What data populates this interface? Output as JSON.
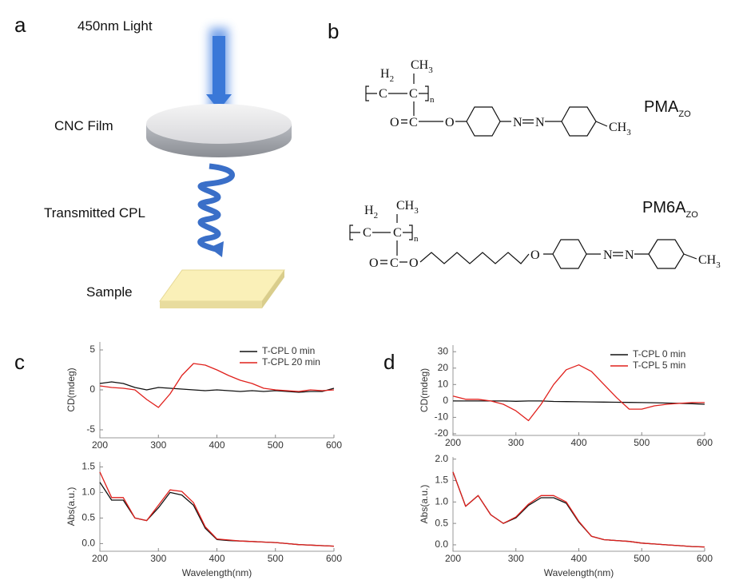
{
  "diagram": {
    "label": "a",
    "light": "450nm Light",
    "film": "CNC Film",
    "cpl": "Transmitted CPL",
    "sample": "Sample"
  },
  "structures": {
    "label": "b",
    "items": [
      {
        "name": "PMA",
        "subscript": "ZO",
        "atoms": [
          "H",
          "2",
          "CH",
          "3",
          "C",
          "C",
          "n",
          "O",
          "C",
          "O",
          "N",
          "N",
          "CH",
          "3"
        ]
      },
      {
        "name": "PM6A",
        "subscript": "ZO",
        "atoms": [
          "H",
          "2",
          "CH",
          "3",
          "C",
          "C",
          "n",
          "O",
          "C",
          "O",
          "O",
          "N",
          "N",
          "CH",
          "3"
        ]
      }
    ]
  },
  "panel_labels": [
    "c",
    "d"
  ],
  "chart_data": [
    {
      "type": "line",
      "ylabel": "CD(mdeg)",
      "xlim": [
        200,
        600
      ],
      "xticks": [
        200,
        300,
        400,
        500,
        600
      ],
      "ylim": [
        -6,
        6
      ],
      "yticks": [
        -5,
        0,
        5
      ],
      "legend": "upper right",
      "x": [
        200,
        220,
        240,
        260,
        280,
        300,
        320,
        340,
        360,
        380,
        400,
        420,
        440,
        460,
        480,
        500,
        520,
        540,
        560,
        580,
        600
      ],
      "series": [
        {
          "name": "T-CPL 0 min",
          "color": "#111111",
          "values": [
            0.8,
            1.0,
            0.8,
            0.3,
            0.0,
            0.3,
            0.2,
            0.1,
            0.0,
            -0.1,
            0.0,
            -0.1,
            -0.2,
            -0.1,
            -0.2,
            -0.1,
            -0.2,
            -0.3,
            -0.2,
            -0.2,
            0.2
          ]
        },
        {
          "name": "T-CPL 20 min",
          "color": "#e0201c",
          "values": [
            0.5,
            0.3,
            0.2,
            0.0,
            -1.2,
            -2.2,
            -0.5,
            1.8,
            3.3,
            3.1,
            2.5,
            1.8,
            1.2,
            0.8,
            0.2,
            0.0,
            -0.1,
            -0.2,
            0.0,
            -0.1,
            0.0
          ]
        }
      ]
    },
    {
      "type": "line",
      "ylabel": "Abs(a.u.)",
      "xlabel": "Wavelength(nm)",
      "xlim": [
        200,
        600
      ],
      "xticks": [
        200,
        300,
        400,
        500,
        600
      ],
      "ylim": [
        -0.15,
        1.6
      ],
      "yticks": [
        {
          "value": 0,
          "label": "0.0"
        },
        0.5,
        {
          "value": 1,
          "label": "1.0"
        },
        1.5
      ],
      "x": [
        200,
        220,
        240,
        260,
        280,
        300,
        320,
        340,
        360,
        380,
        400,
        420,
        440,
        460,
        480,
        500,
        520,
        540,
        560,
        580,
        600
      ],
      "series": [
        {
          "name": "T-CPL 0 min",
          "color": "#111111",
          "values": [
            1.2,
            0.85,
            0.85,
            0.5,
            0.45,
            0.7,
            1.0,
            0.95,
            0.75,
            0.3,
            0.08,
            0.06,
            0.05,
            0.04,
            0.03,
            0.02,
            0.0,
            -0.02,
            -0.03,
            -0.04,
            -0.05
          ]
        },
        {
          "name": "T-CPL 20 min",
          "color": "#e0201c",
          "values": [
            1.4,
            0.9,
            0.9,
            0.5,
            0.45,
            0.75,
            1.05,
            1.02,
            0.8,
            0.33,
            0.09,
            0.07,
            0.05,
            0.04,
            0.03,
            0.02,
            0.0,
            -0.02,
            -0.03,
            -0.04,
            -0.05
          ]
        }
      ]
    },
    {
      "type": "line",
      "ylabel": "CD(mdeg)",
      "xlim": [
        200,
        600
      ],
      "xticks": [
        200,
        300,
        400,
        500,
        600
      ],
      "ylim": [
        -21,
        34
      ],
      "yticks": [
        -20,
        -10,
        0,
        10,
        20,
        30
      ],
      "legend": "upper right",
      "x": [
        200,
        220,
        240,
        260,
        280,
        300,
        320,
        340,
        360,
        380,
        400,
        420,
        440,
        460,
        480,
        500,
        520,
        540,
        560,
        580,
        600
      ],
      "series": [
        {
          "name": "T-CPL 0 min",
          "color": "#111111",
          "values": [
            0,
            0,
            0,
            0,
            0,
            -0.2,
            0,
            0,
            -0.3,
            -0.4,
            -0.5,
            -0.6,
            -0.7,
            -0.8,
            -0.9,
            -1.0,
            -1.1,
            -1.3,
            -1.5,
            -1.7,
            -2.0
          ]
        },
        {
          "name": "T-CPL 5 min",
          "color": "#e0201c",
          "values": [
            3,
            1,
            1,
            0,
            -2,
            -6,
            -12,
            -2,
            10,
            19,
            22,
            18,
            10,
            2,
            -5,
            -5,
            -3,
            -2,
            -1.5,
            -1,
            -1
          ]
        }
      ]
    },
    {
      "type": "line",
      "ylabel": "Abs(a.u.)",
      "xlabel": "Wavelength(nm)",
      "xlim": [
        200,
        600
      ],
      "xticks": [
        200,
        300,
        400,
        500,
        600
      ],
      "ylim": [
        -0.15,
        2.05
      ],
      "yticks": [
        {
          "value": 0,
          "label": "0.0"
        },
        0.5,
        {
          "value": 1,
          "label": "1.0"
        },
        1.5,
        {
          "value": 2,
          "label": "2.0"
        }
      ],
      "x": [
        200,
        220,
        240,
        260,
        280,
        300,
        320,
        340,
        360,
        380,
        400,
        420,
        440,
        460,
        480,
        500,
        520,
        540,
        560,
        580,
        600
      ],
      "series": [
        {
          "name": "T-CPL 0 min",
          "color": "#111111",
          "values": [
            1.7,
            0.9,
            1.15,
            0.7,
            0.5,
            0.63,
            0.92,
            1.1,
            1.1,
            0.97,
            0.53,
            0.2,
            0.12,
            0.1,
            0.08,
            0.04,
            0.02,
            0.0,
            -0.02,
            -0.04,
            -0.05
          ]
        },
        {
          "name": "T-CPL 5 min",
          "color": "#e0201c",
          "values": [
            1.7,
            0.9,
            1.15,
            0.7,
            0.5,
            0.65,
            0.95,
            1.15,
            1.15,
            1.0,
            0.55,
            0.2,
            0.12,
            0.1,
            0.08,
            0.04,
            0.02,
            0.0,
            -0.02,
            -0.04,
            -0.05
          ]
        }
      ]
    }
  ]
}
